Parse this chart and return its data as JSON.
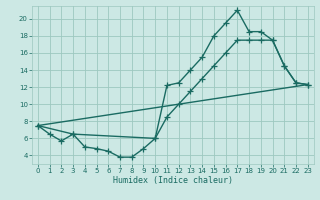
{
  "background_color": "#cce8e4",
  "grid_color": "#9dc8c0",
  "line_color": "#1a6b62",
  "xlabel": "Humidex (Indice chaleur)",
  "xlim": [
    -0.5,
    23.5
  ],
  "ylim": [
    3.0,
    21.5
  ],
  "yticks": [
    4,
    6,
    8,
    10,
    12,
    14,
    16,
    18,
    20
  ],
  "xticks": [
    0,
    1,
    2,
    3,
    4,
    5,
    6,
    7,
    8,
    9,
    10,
    11,
    12,
    13,
    14,
    15,
    16,
    17,
    18,
    19,
    20,
    21,
    22,
    23
  ],
  "line1_x": [
    0,
    1,
    2,
    3,
    4,
    5,
    6,
    7,
    8,
    9,
    10,
    11,
    12,
    13,
    14,
    15,
    16,
    17,
    18,
    19,
    20,
    21,
    22,
    23
  ],
  "line1_y": [
    7.5,
    6.5,
    5.7,
    6.5,
    5.0,
    4.8,
    4.5,
    3.8,
    3.8,
    4.8,
    6.0,
    12.2,
    12.5,
    14.0,
    15.5,
    18.0,
    19.5,
    21.0,
    18.5,
    18.5,
    17.5,
    14.5,
    12.5,
    12.3
  ],
  "line2_x": [
    0,
    3,
    10,
    11,
    12,
    13,
    14,
    15,
    16,
    17,
    18,
    19,
    20,
    21,
    22,
    23
  ],
  "line2_y": [
    7.5,
    6.5,
    6.0,
    8.5,
    10.0,
    11.5,
    13.0,
    14.5,
    16.0,
    17.5,
    17.5,
    17.5,
    17.5,
    14.5,
    12.5,
    12.3
  ],
  "line3_x": [
    0,
    23
  ],
  "line3_y": [
    7.5,
    12.3
  ],
  "marker_size": 4,
  "line_width": 1.0
}
